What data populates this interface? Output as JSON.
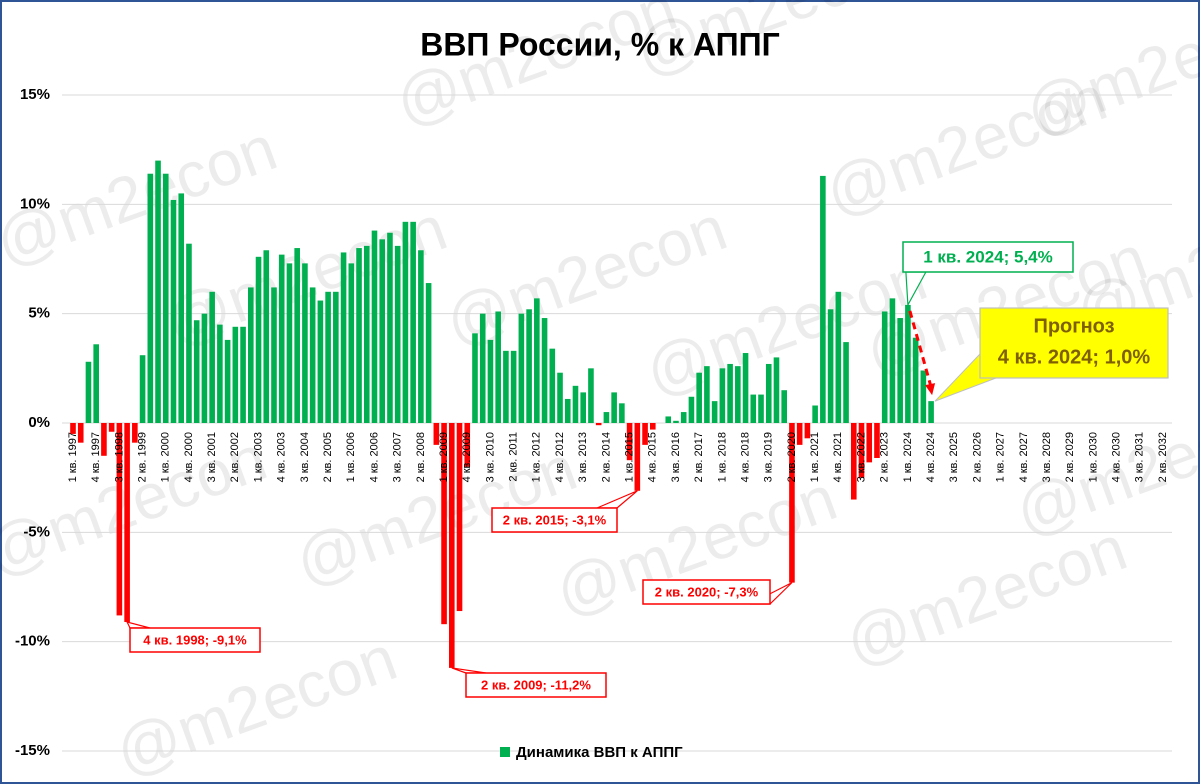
{
  "chart_data": {
    "type": "bar",
    "title": "ВВП России, % к АППГ",
    "watermark": "@m2econ",
    "categories": [
      "1 кв. 1997",
      null,
      null,
      "4 кв. 1997",
      null,
      null,
      "3 кв. 1998",
      null,
      null,
      "2 кв. 1999",
      null,
      null,
      "1 кв. 2000",
      null,
      null,
      "4 кв. 2000",
      null,
      null,
      "3 кв. 2001",
      null,
      null,
      "2 кв. 2002",
      null,
      null,
      "1 кв. 2003",
      null,
      null,
      "4 кв. 2003",
      null,
      null,
      "3 кв. 2004",
      null,
      null,
      "2 кв. 2005",
      null,
      null,
      "1 кв. 2006",
      null,
      null,
      "4 кв. 2006",
      null,
      null,
      "3 кв. 2007",
      null,
      null,
      "2 кв. 2008",
      null,
      null,
      "1 кв. 2009",
      null,
      null,
      "4 кв. 2009",
      null,
      null,
      "3 кв. 2010",
      null,
      null,
      "2 кв. 2011",
      null,
      null,
      "1 кв. 2012",
      null,
      null,
      "4 кв. 2012",
      null,
      null,
      "3 кв. 2013",
      null,
      null,
      "2 кв. 2014",
      null,
      null,
      "1 кв. 2015",
      null,
      null,
      "4 кв. 2015",
      null,
      null,
      "3 кв. 2016",
      null,
      null,
      "2 кв. 2017",
      null,
      null,
      "1 кв. 2018",
      null,
      null,
      "4 кв. 2018",
      null,
      null,
      "3 кв. 2019",
      null,
      null,
      "2 кв. 2020",
      null,
      null,
      "1 кв. 2021",
      null,
      null,
      "4 кв. 2021",
      null,
      null,
      "3 кв. 2022",
      null,
      null,
      "2 кв. 2023",
      null,
      null,
      "1 кв. 2024",
      null,
      null,
      "4 кв. 2024",
      null,
      null,
      "3 кв. 2025",
      null,
      null,
      "2 кв. 2026",
      null,
      null,
      "1 кв. 2027",
      null,
      null,
      "4 кв. 2027",
      null,
      null,
      "3 кв. 2028",
      null,
      null,
      "2 кв. 2029",
      null,
      null,
      "1 кв. 2030",
      null,
      null,
      "4 кв. 2030",
      null,
      null,
      "3 кв. 2031",
      null,
      null,
      "2 кв. 2032"
    ],
    "series": [
      {
        "name": "Динамика ВВП к АППГ",
        "color": "#00b050",
        "negative_color": "#ff0000",
        "values": [
          -0.5,
          -0.9,
          2.8,
          3.6,
          -1.5,
          -0.4,
          -8.8,
          -9.1,
          -0.9,
          3.1,
          11.4,
          12.0,
          11.4,
          10.2,
          10.5,
          8.2,
          4.7,
          5.0,
          6.0,
          4.5,
          3.8,
          4.4,
          4.4,
          6.2,
          7.6,
          7.9,
          6.2,
          7.7,
          7.3,
          8.0,
          7.3,
          6.2,
          5.6,
          6.0,
          6.0,
          7.8,
          7.3,
          8.0,
          8.1,
          8.8,
          8.4,
          8.7,
          8.1,
          9.2,
          9.2,
          7.9,
          6.4,
          -1.0,
          -9.2,
          -11.2,
          -8.6,
          -2.0,
          4.1,
          5.0,
          3.8,
          5.1,
          3.3,
          3.3,
          5.0,
          5.2,
          5.7,
          4.8,
          3.4,
          2.3,
          1.1,
          1.7,
          1.4,
          2.5,
          -0.1,
          0.5,
          1.4,
          0.9,
          -1.7,
          -3.1,
          -1.0,
          -0.3,
          0.0,
          0.3,
          0.1,
          0.5,
          1.2,
          2.3,
          2.6,
          1.0,
          2.5,
          2.7,
          2.6,
          3.2,
          1.3,
          1.3,
          2.7,
          3.0,
          1.5,
          -7.3,
          -1.0,
          -0.7,
          0.8,
          11.3,
          5.2,
          6.0,
          3.7,
          -3.5,
          -2.5,
          -1.8,
          -1.6,
          5.1,
          5.7,
          4.8,
          5.4,
          3.9,
          2.4,
          1.0,
          null,
          null,
          null,
          null,
          null,
          null,
          null,
          null,
          null,
          null,
          null,
          null,
          null,
          null,
          null,
          null,
          null,
          null,
          null,
          null,
          null,
          null,
          null,
          null,
          null,
          null,
          null,
          null,
          null,
          null
        ]
      }
    ],
    "ylim": [
      -15,
      15
    ],
    "yticks": [
      {
        "value": -15,
        "label": "-15%"
      },
      {
        "value": -10,
        "label": "-10%"
      },
      {
        "value": -5,
        "label": "-5%"
      },
      {
        "value": 0,
        "label": "0%"
      },
      {
        "value": 5,
        "label": "5%"
      },
      {
        "value": 10,
        "label": "10%"
      },
      {
        "value": 15,
        "label": "15%"
      }
    ],
    "grid": true,
    "legend": "bottom",
    "annotations": [
      "4 кв. 1998; -9,1%",
      "2 кв. 2009; -11,2%",
      "2 кв. 2015; -3,1%",
      "2 кв. 2020; -7,3%",
      "1 кв. 2024; 5,4%"
    ],
    "forecast_title": "Прогноз",
    "forecast_label": "4 кв. 2024; 1,0%"
  }
}
